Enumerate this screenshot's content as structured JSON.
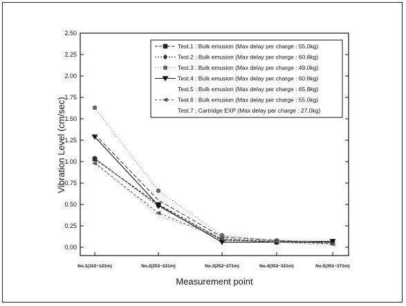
{
  "chart_data": {
    "type": "line",
    "xlabel": "Measurement point",
    "ylabel": "Vibration Level (cm/sec)",
    "categories": [
      "No.1(102~121m)",
      "No.2(202~221m)",
      "No.3(252~271m)",
      "No.4(302~321m)",
      "No.5(351~371m)"
    ],
    "ylim": [
      0,
      2.5
    ],
    "yticks": [
      "0.00",
      "0.25",
      "0.50",
      "0.75",
      "1.00",
      "1.25",
      "1.50",
      "1.75",
      "2.00",
      "2.25",
      "2.50"
    ],
    "grid": false,
    "legend_position": "top-right",
    "series": [
      {
        "name": "Test.1 : Bulk emusion (Max delay per charge : 55.0kg)",
        "values": [
          1.03,
          0.5,
          0.09,
          0.06,
          0.05
        ],
        "color": "#222222",
        "marker": "square",
        "dash": "4,2"
      },
      {
        "name": "Test.2 : Bulk emusion (Max delay per charge : 60.8kg)",
        "values": [
          1.04,
          0.48,
          0.08,
          0.07,
          0.06
        ],
        "color": "#333333",
        "marker": "diamond",
        "dash": "2,2"
      },
      {
        "name": "Test.3 : Bulk emusion (Max delay per charge : 49.0kg)",
        "values": [
          1.63,
          0.66,
          0.14,
          0.08,
          0.07
        ],
        "color": "#666666",
        "marker": "circle",
        "dash": "1,3"
      },
      {
        "name": "Test.4 : Bulk emusion (Max delay per charge : 60.8kg)",
        "values": [
          1.29,
          0.49,
          0.06,
          0.06,
          0.07
        ],
        "color": "#111111",
        "marker": "triangle-down",
        "dash": ""
      },
      {
        "name": "Test.5 : Bulk emusion (Max delay per charge : 65.8kg)",
        "values": [
          1.32,
          0.55,
          0.12,
          0.08,
          0.05
        ],
        "color": "#444444",
        "marker": "none",
        "dash": "6,3"
      },
      {
        "name": "Test.6 : Bulk emusion (Max delay per charge : 55.0kg)",
        "values": [
          0.98,
          0.4,
          0.1,
          0.07,
          0.04
        ],
        "color": "#555555",
        "marker": "triangle-left",
        "dash": "3,3"
      },
      {
        "name": "Test.7 : Cartridge EXP (Max delay per charge : 27.0kg)",
        "values": [
          1.0,
          0.36,
          0.13,
          0.06,
          0.02
        ],
        "color": "#999999",
        "marker": "none",
        "dash": "1,2"
      }
    ],
    "legend_labels": [
      "Test.1 :  Bulk emusion (Max delay per charge : 55.0kg)",
      "Test.2 :  Bulk emusion (Max delay per charge : 60.8kg)",
      "Test.3 :  Bulk emusion (Max delay per charge : 49.0kg)",
      "Test.4 :  Bulk emusion (Max delay per charge : 60.8kg)",
      "Test.5 :  Bulk emusion (Max delay per charge : 65.8kg)",
      "Test.6 :  Bulk emusion (Max delay per charge : 55.0kg)",
      "Test.7 :  Cartridge EXP (Max delay per charge : 27.0kg)"
    ]
  }
}
